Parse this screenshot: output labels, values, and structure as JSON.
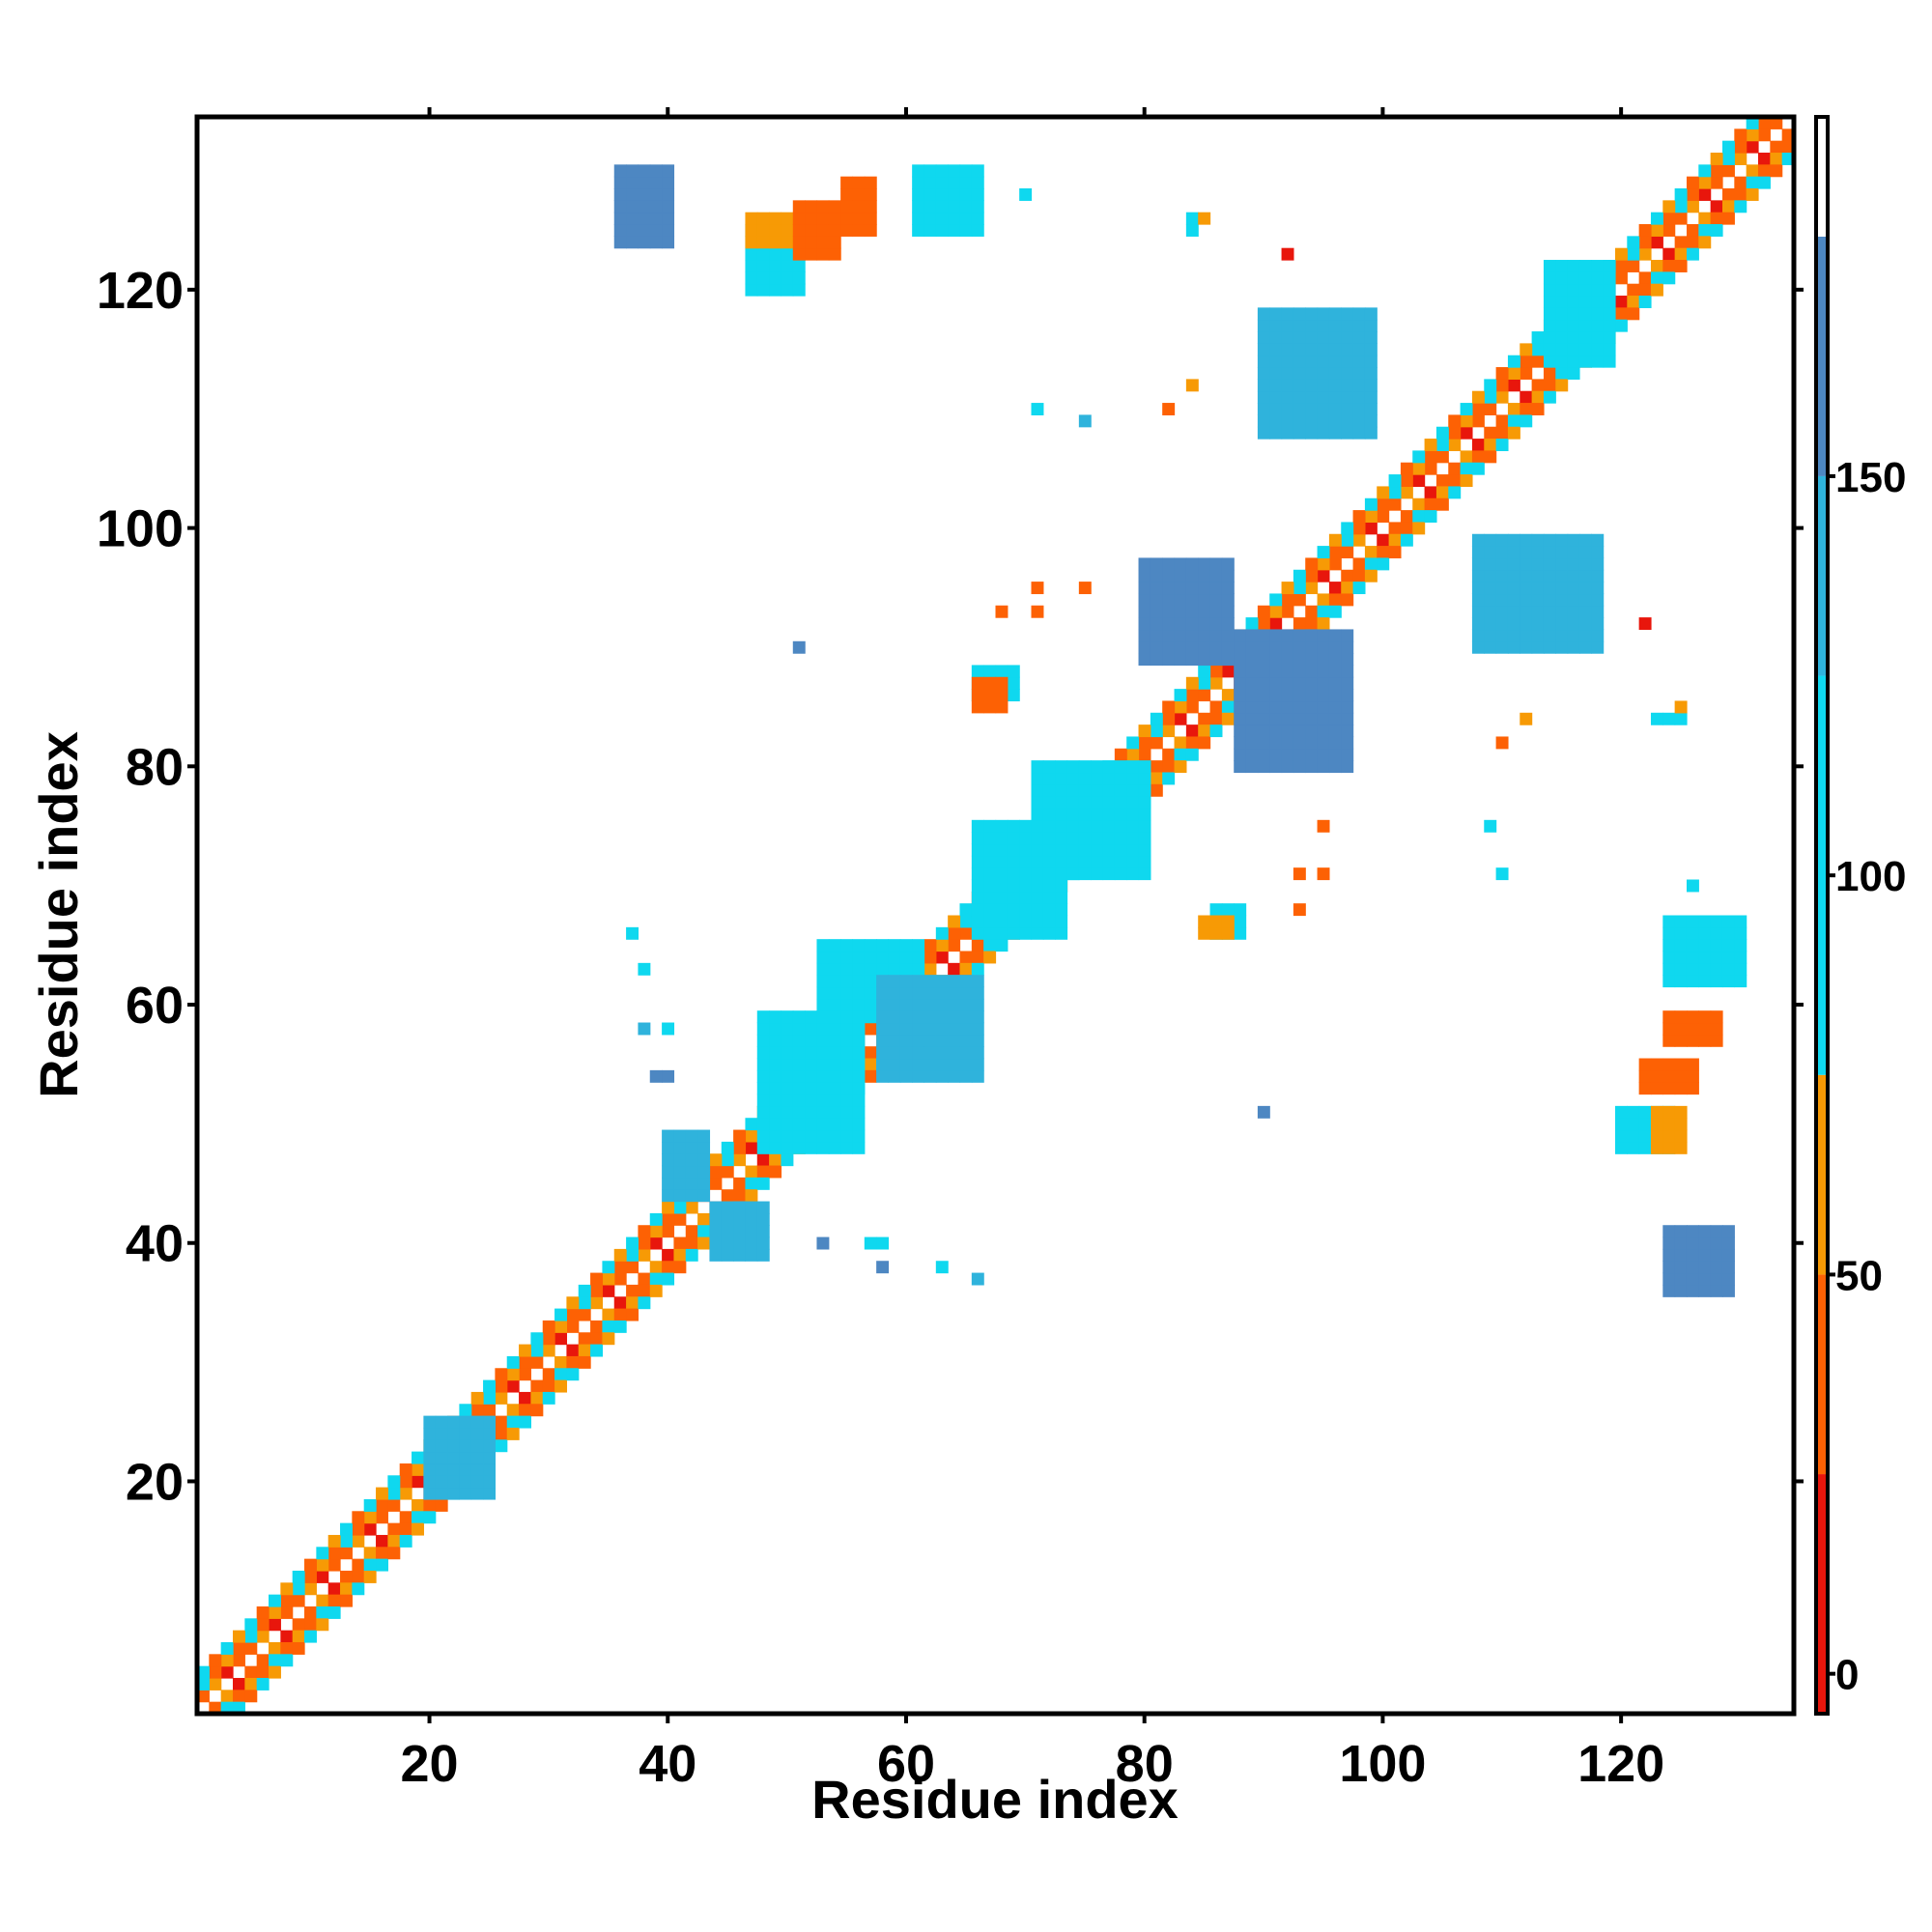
{
  "chart_data": {
    "type": "heatmap",
    "title": "",
    "xlabel": "Residue index",
    "ylabel": "Residue index",
    "xlim": [
      1,
      134
    ],
    "ylim": [
      1,
      134
    ],
    "x_ticks": [
      20,
      40,
      60,
      80,
      100,
      120
    ],
    "y_ticks": [
      20,
      40,
      60,
      80,
      100,
      120
    ],
    "colorbar": {
      "ticks": [
        0,
        50,
        100,
        150
      ],
      "range": [
        -5,
        195
      ],
      "bins": [
        {
          "from": -5,
          "to": 25,
          "color": "#e8160c"
        },
        {
          "from": 25,
          "to": 50,
          "color": "#fd6104"
        },
        {
          "from": 50,
          "to": 75,
          "color": "#f79a05"
        },
        {
          "from": 75,
          "to": 125,
          "color": "#0fd8ef"
        },
        {
          "from": 125,
          "to": 150,
          "color": "#2fb3dc"
        },
        {
          "from": 150,
          "to": 180,
          "color": "#4d87c2"
        },
        {
          "from": 180,
          "to": 195,
          "color": "#ffffff"
        }
      ]
    },
    "diagonal_bands": [
      {
        "offset": 1,
        "range": [
          1,
          133
        ],
        "values": [
          10,
          40,
          40,
          60
        ]
      },
      {
        "offset": 2,
        "range": [
          1,
          132
        ],
        "values": [
          40,
          60,
          40,
          100
        ]
      },
      {
        "offset": 3,
        "range": [
          1,
          131
        ],
        "values": [
          100,
          40,
          120,
          60
        ]
      }
    ],
    "regions": [
      {
        "x": [
          20,
          25
        ],
        "y": [
          19,
          25
        ],
        "value": 130
      },
      {
        "x": [
          40,
          43
        ],
        "y": [
          44,
          49
        ],
        "value": 135
      },
      {
        "x": [
          44,
          48
        ],
        "y": [
          39,
          43
        ],
        "value": 130
      },
      {
        "x": [
          48,
          56
        ],
        "y": [
          48,
          59
        ],
        "value": 110
      },
      {
        "x": [
          53,
          61
        ],
        "y": [
          59,
          65
        ],
        "value": 120
      },
      {
        "x": [
          58,
          66
        ],
        "y": [
          54,
          62
        ],
        "value": 130
      },
      {
        "x": [
          66,
          73
        ],
        "y": [
          66,
          75
        ],
        "value": 110
      },
      {
        "x": [
          71,
          80
        ],
        "y": [
          71,
          80
        ],
        "value": 115
      },
      {
        "x": [
          66,
          69
        ],
        "y": [
          86,
          88
        ],
        "value": 100
      },
      {
        "x": [
          66,
          68
        ],
        "y": [
          85,
          87
        ],
        "value": 40
      },
      {
        "x": [
          86,
          88
        ],
        "y": [
          66,
          68
        ],
        "value": 100
      },
      {
        "x": [
          85,
          87
        ],
        "y": [
          66,
          67
        ],
        "value": 55
      },
      {
        "x": [
          80,
          87
        ],
        "y": [
          89,
          97
        ],
        "value": 155
      },
      {
        "x": [
          88,
          97
        ],
        "y": [
          80,
          91
        ],
        "value": 155
      },
      {
        "x": [
          90,
          99
        ],
        "y": [
          108,
          118
        ],
        "value": 140
      },
      {
        "x": [
          108,
          118
        ],
        "y": [
          90,
          99
        ],
        "value": 140
      },
      {
        "x": [
          36,
          40
        ],
        "y": [
          124,
          130
        ],
        "value": 155
      },
      {
        "x": [
          47,
          51
        ],
        "y": [
          120,
          125
        ],
        "value": 110
      },
      {
        "x": [
          47,
          50
        ],
        "y": [
          124,
          126
        ],
        "value": 50
      },
      {
        "x": [
          51,
          54
        ],
        "y": [
          123,
          127
        ],
        "value": 40
      },
      {
        "x": [
          55,
          57
        ],
        "y": [
          125,
          129
        ],
        "value": 45
      },
      {
        "x": [
          61,
          66
        ],
        "y": [
          125,
          130
        ],
        "value": 120
      },
      {
        "x": [
          120,
          124
        ],
        "y": [
          48,
          51
        ],
        "value": 115
      },
      {
        "x": [
          123,
          125
        ],
        "y": [
          48,
          51
        ],
        "value": 55
      },
      {
        "x": [
          122,
          126
        ],
        "y": [
          53,
          55
        ],
        "value": 40
      },
      {
        "x": [
          124,
          128
        ],
        "y": [
          57,
          59
        ],
        "value": 40
      },
      {
        "x": [
          124,
          130
        ],
        "y": [
          62,
          67
        ],
        "value": 110
      },
      {
        "x": [
          124,
          129
        ],
        "y": [
          36,
          41
        ],
        "value": 155
      },
      {
        "x": [
          114,
          119
        ],
        "y": [
          114,
          122
        ],
        "value": 115
      }
    ],
    "points": [
      {
        "x": 37,
        "y": 66,
        "value": 110
      },
      {
        "x": 38,
        "y": 63,
        "value": 120
      },
      {
        "x": 38,
        "y": 58,
        "value": 130
      },
      {
        "x": 40,
        "y": 58,
        "value": 110
      },
      {
        "x": 39,
        "y": 54,
        "value": 155
      },
      {
        "x": 40,
        "y": 54,
        "value": 155
      },
      {
        "x": 53,
        "y": 40,
        "value": 155
      },
      {
        "x": 57,
        "y": 40,
        "value": 100
      },
      {
        "x": 58,
        "y": 40,
        "value": 100
      },
      {
        "x": 58,
        "y": 38,
        "value": 155
      },
      {
        "x": 63,
        "y": 38,
        "value": 110
      },
      {
        "x": 66,
        "y": 37,
        "value": 130
      },
      {
        "x": 51,
        "y": 90,
        "value": 155
      },
      {
        "x": 68,
        "y": 93,
        "value": 45
      },
      {
        "x": 71,
        "y": 95,
        "value": 40
      },
      {
        "x": 71,
        "y": 93,
        "value": 45
      },
      {
        "x": 75,
        "y": 95,
        "value": 40
      },
      {
        "x": 71,
        "y": 110,
        "value": 110
      },
      {
        "x": 75,
        "y": 109,
        "value": 130
      },
      {
        "x": 82,
        "y": 110,
        "value": 40
      },
      {
        "x": 84,
        "y": 112,
        "value": 60
      },
      {
        "x": 84,
        "y": 126,
        "value": 100
      },
      {
        "x": 84,
        "y": 125,
        "value": 100
      },
      {
        "x": 85,
        "y": 126,
        "value": 60
      },
      {
        "x": 92,
        "y": 123,
        "value": 20
      },
      {
        "x": 70,
        "y": 128,
        "value": 100
      },
      {
        "x": 90,
        "y": 51,
        "value": 155
      },
      {
        "x": 93,
        "y": 71,
        "value": 45
      },
      {
        "x": 95,
        "y": 71,
        "value": 40
      },
      {
        "x": 93,
        "y": 68,
        "value": 40
      },
      {
        "x": 95,
        "y": 75,
        "value": 40
      },
      {
        "x": 109,
        "y": 75,
        "value": 110
      },
      {
        "x": 110,
        "y": 71,
        "value": 100
      },
      {
        "x": 110,
        "y": 82,
        "value": 40
      },
      {
        "x": 112,
        "y": 84,
        "value": 60
      },
      {
        "x": 122,
        "y": 92,
        "value": 20
      },
      {
        "x": 123,
        "y": 84,
        "value": 110
      },
      {
        "x": 124,
        "y": 84,
        "value": 100
      },
      {
        "x": 125,
        "y": 84,
        "value": 100
      },
      {
        "x": 125,
        "y": 85,
        "value": 60
      },
      {
        "x": 126,
        "y": 70,
        "value": 100
      }
    ]
  }
}
